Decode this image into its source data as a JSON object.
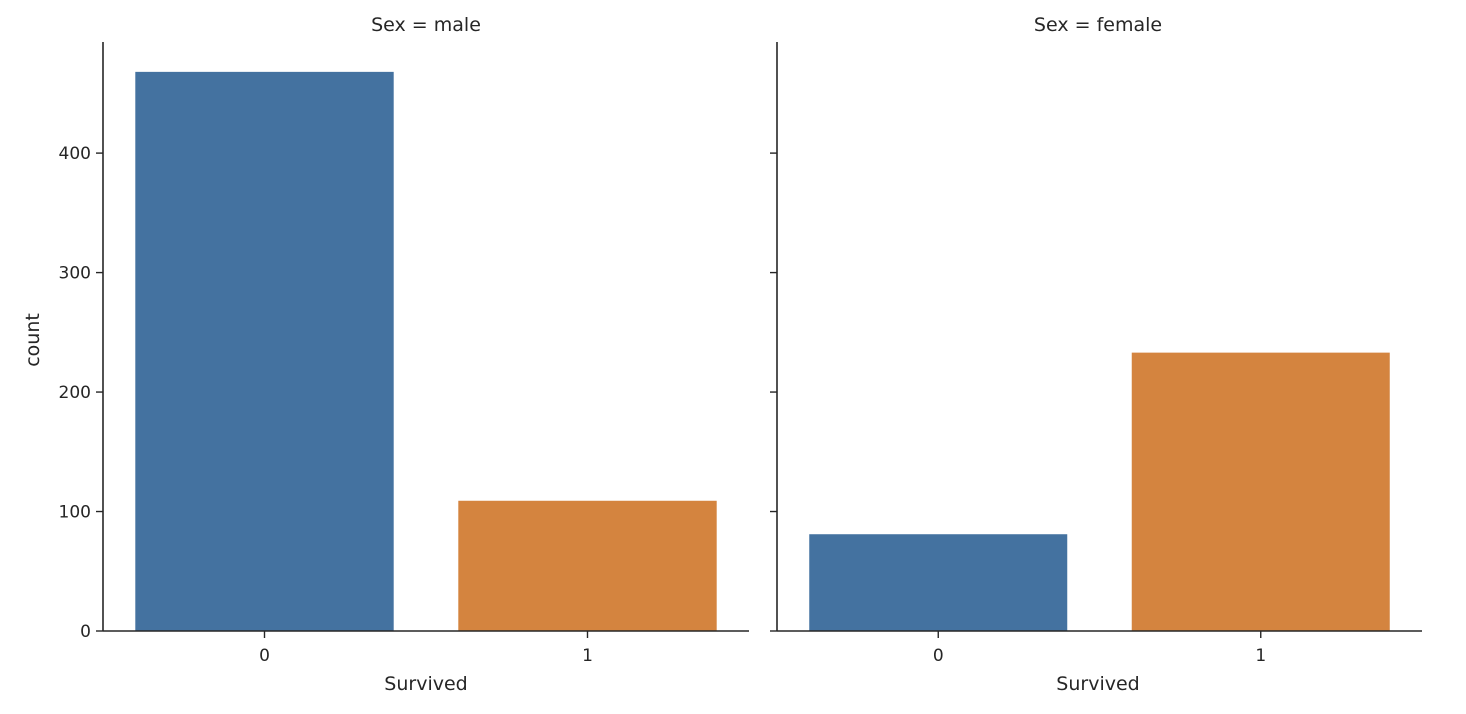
{
  "chart_data": {
    "type": "bar",
    "ylabel": "count",
    "ylim": [
      0,
      493
    ],
    "yticks": [
      0,
      100,
      200,
      300,
      400
    ],
    "grid": false,
    "colors": {
      "0": "#4472a0",
      "1": "#d4843f"
    },
    "panels": [
      {
        "title": "Sex = male",
        "xlabel": "Survived",
        "categories": [
          "0",
          "1"
        ],
        "values": [
          468,
          109
        ]
      },
      {
        "title": "Sex = female",
        "xlabel": "Survived",
        "categories": [
          "0",
          "1"
        ],
        "values": [
          81,
          233
        ]
      }
    ]
  }
}
